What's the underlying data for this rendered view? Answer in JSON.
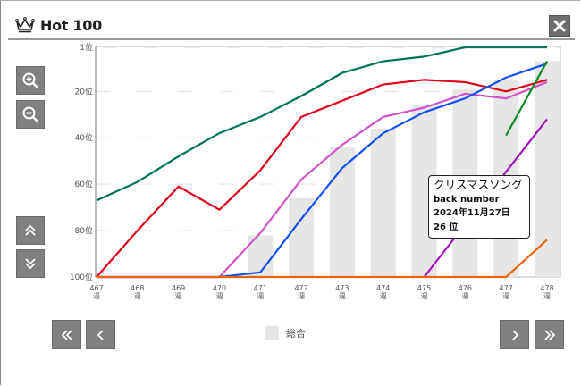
{
  "header": {
    "title": "Hot 100",
    "icon": "crown-icon",
    "close_icon": "close-icon"
  },
  "controls": {
    "zoom_in_icon": "zoom-in-icon",
    "zoom_out_icon": "zoom-out-icon",
    "scroll_up_icon": "double-chevron-up-icon",
    "scroll_down_icon": "double-chevron-down-icon",
    "first_icon": "double-chevron-left-icon",
    "prev_icon": "chevron-left-icon",
    "next_icon": "chevron-right-icon",
    "last_icon": "double-chevron-right-icon"
  },
  "legend": {
    "label": "総合",
    "color": "#e6e6e6"
  },
  "tooltip": {
    "title": "クリスマスソング",
    "artist": "back number",
    "date": "2024年11月27日",
    "rank": "26 位"
  },
  "chart_data": {
    "type": "line",
    "title": "Hot 100",
    "xlabel": "",
    "ylabel": "",
    "y_inverted": true,
    "ylim": [
      1,
      100
    ],
    "y_ticks": [
      "1位",
      "20位",
      "40位",
      "60位",
      "80位",
      "100位"
    ],
    "y_tick_values": [
      1,
      20,
      40,
      60,
      80,
      100
    ],
    "x": [
      "467",
      "468",
      "469",
      "470",
      "471",
      "472",
      "473",
      "474",
      "475",
      "476",
      "477",
      "478"
    ],
    "x_suffix": "週",
    "grid": true,
    "legend_position": "bottom",
    "bars": {
      "name": "総合",
      "color": "#e6e6e6",
      "values": [
        null,
        null,
        null,
        null,
        82,
        66,
        44,
        36,
        26,
        19,
        15,
        7
      ]
    },
    "series": [
      {
        "name": "teal",
        "color": "#00735a",
        "values": [
          67,
          59,
          48,
          38,
          31,
          22,
          12,
          7,
          5,
          1,
          1,
          1
        ]
      },
      {
        "name": "red",
        "color": "#e0001c",
        "values": [
          100,
          80,
          61,
          71,
          54,
          31,
          24,
          17,
          15,
          16,
          20,
          15
        ]
      },
      {
        "name": "pink",
        "color": "#d252c8",
        "values": [
          100,
          100,
          100,
          100,
          81,
          58,
          43,
          31,
          27,
          21,
          23,
          16
        ]
      },
      {
        "name": "blue",
        "color": "#1450f0",
        "values": [
          100,
          100,
          100,
          100,
          98,
          75,
          53,
          38,
          29,
          23,
          14,
          8
        ]
      },
      {
        "name": "green",
        "color": "#0a8c2a",
        "values": [
          null,
          null,
          null,
          null,
          null,
          null,
          null,
          null,
          null,
          null,
          39,
          7
        ]
      },
      {
        "name": "purple",
        "color": "#a012c0",
        "values": [
          null,
          null,
          null,
          null,
          null,
          null,
          null,
          null,
          100,
          null,
          null,
          32
        ]
      },
      {
        "name": "orange",
        "color": "#e8650a",
        "values": [
          100,
          100,
          100,
          100,
          100,
          100,
          100,
          100,
          100,
          100,
          100,
          84
        ]
      }
    ],
    "annotation": {
      "type": "tooltip",
      "title": "クリスマスソング",
      "artist": "back number",
      "date": "2024年11月27日",
      "rank": 26
    }
  }
}
